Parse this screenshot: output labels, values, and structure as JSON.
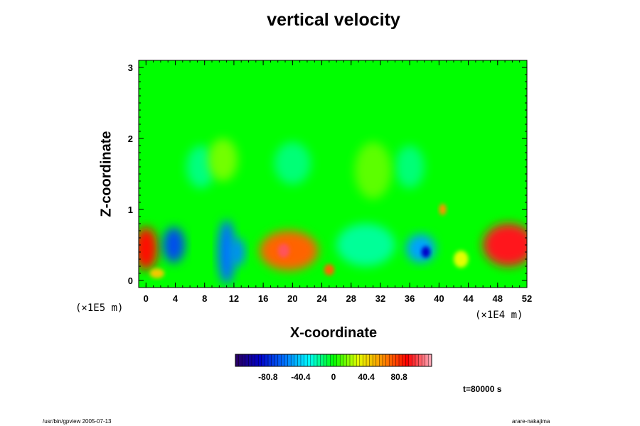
{
  "chart_data": {
    "type": "heatmap",
    "title": "vertical velocity",
    "xlabel": "X-coordinate",
    "ylabel": "Z-coordinate",
    "x_unit": "(×1E4 m)",
    "y_unit": "(×1E5 m)",
    "xlim": [
      -1,
      52
    ],
    "ylim": [
      -0.1,
      3.1
    ],
    "x_ticks": [
      0,
      4,
      8,
      12,
      16,
      20,
      24,
      28,
      32,
      36,
      40,
      44,
      48,
      52
    ],
    "y_ticks": [
      0,
      1,
      2,
      3
    ],
    "colorbar": {
      "range": [
        -121,
        121
      ],
      "tick_values": [
        -80.8,
        -40.4,
        0,
        40.4,
        80.8
      ],
      "tick_labels": [
        "-80.8",
        "-40.4",
        "0",
        "40.4",
        "80.8"
      ]
    },
    "features": [
      {
        "x": 49.5,
        "z": 0.5,
        "rx": 3.5,
        "rz": 0.3,
        "value": 95
      },
      {
        "x": 19.5,
        "z": 0.42,
        "rx": 4.0,
        "rz": 0.28,
        "value": 70
      },
      {
        "x": 18.8,
        "z": 0.42,
        "rx": 0.8,
        "rz": 0.1,
        "value": 105
      },
      {
        "x": 0.0,
        "z": 0.45,
        "rx": 1.6,
        "rz": 0.3,
        "value": 88
      },
      {
        "x": 25.0,
        "z": 0.15,
        "rx": 0.7,
        "rz": 0.08,
        "value": 70
      },
      {
        "x": 3.8,
        "z": 0.5,
        "rx": 1.5,
        "rz": 0.25,
        "value": -70
      },
      {
        "x": 11.0,
        "z": 0.4,
        "rx": 1.2,
        "rz": 0.45,
        "value": -60
      },
      {
        "x": 12.5,
        "z": 0.4,
        "rx": 1.0,
        "rz": 0.2,
        "value": -55
      },
      {
        "x": 37.5,
        "z": 0.45,
        "rx": 2.0,
        "rz": 0.2,
        "value": -50
      },
      {
        "x": 38.2,
        "z": 0.4,
        "rx": 0.6,
        "rz": 0.08,
        "value": -90
      },
      {
        "x": 30.0,
        "z": 0.5,
        "rx": 4.0,
        "rz": 0.3,
        "value": -18
      },
      {
        "x": 7.5,
        "z": 1.6,
        "rx": 2.0,
        "rz": 0.3,
        "value": -15
      },
      {
        "x": 20.0,
        "z": 1.65,
        "rx": 2.5,
        "rz": 0.3,
        "value": -14
      },
      {
        "x": 36.0,
        "z": 1.6,
        "rx": 2.0,
        "rz": 0.3,
        "value": -14
      },
      {
        "x": 10.5,
        "z": 1.7,
        "rx": 2.0,
        "rz": 0.3,
        "value": 15
      },
      {
        "x": 31.0,
        "z": 1.55,
        "rx": 2.5,
        "rz": 0.4,
        "value": 12
      },
      {
        "x": 1.5,
        "z": 0.1,
        "rx": 1.0,
        "rz": 0.07,
        "value": 45
      },
      {
        "x": 43.0,
        "z": 0.3,
        "rx": 1.0,
        "rz": 0.12,
        "value": 30
      },
      {
        "x": 40.5,
        "z": 1.0,
        "rx": 0.5,
        "rz": 0.08,
        "value": 60
      }
    ]
  },
  "annotations": {
    "time": "t=80000 s",
    "footer_left": "/usr/bin/gpview 2005-07-13",
    "footer_right": "arare-nakajima"
  },
  "colors": {
    "map_scale": [
      "#2a0060",
      "#0000c8",
      "#0070ff",
      "#00ffff",
      "#00ff00",
      "#e6ff00",
      "#ff9000",
      "#ff0000",
      "#ffb0c0"
    ],
    "background_value": "#00ff00"
  }
}
